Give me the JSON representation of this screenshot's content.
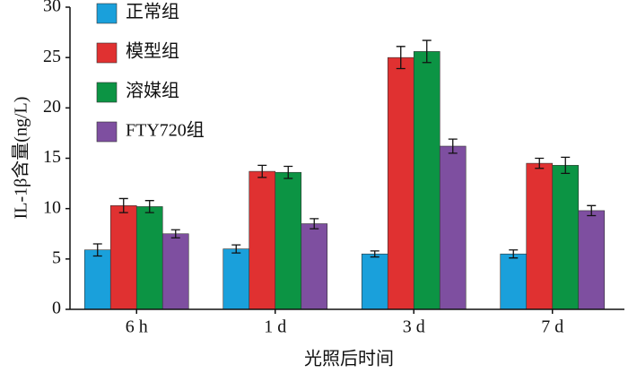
{
  "chart_data": {
    "type": "bar",
    "x_label": "光照后时间",
    "y_label": "IL-1β含量(ng/L)",
    "categories": [
      "6 h",
      "1 d",
      "3 d",
      "7 d"
    ],
    "series": [
      {
        "name": "正常组",
        "color": "#1aa0db",
        "values": [
          5.9,
          6.0,
          5.5,
          5.5
        ],
        "errors": [
          0.6,
          0.4,
          0.3,
          0.4
        ]
      },
      {
        "name": "模型组",
        "color": "#e03131",
        "values": [
          10.3,
          13.7,
          25.0,
          14.5
        ],
        "errors": [
          0.7,
          0.6,
          1.1,
          0.5
        ]
      },
      {
        "name": "溶媒组",
        "color": "#0c9444",
        "values": [
          10.2,
          13.6,
          25.6,
          14.3
        ],
        "errors": [
          0.6,
          0.6,
          1.1,
          0.8
        ]
      },
      {
        "name": "FTY720组",
        "color": "#7e4fa0",
        "values": [
          7.5,
          8.5,
          16.2,
          9.8
        ],
        "errors": [
          0.4,
          0.5,
          0.7,
          0.5
        ]
      }
    ],
    "ylim": [
      0,
      30
    ],
    "yticks": [
      0,
      5,
      10,
      15,
      20,
      25,
      30
    ],
    "legend": "upper left"
  }
}
